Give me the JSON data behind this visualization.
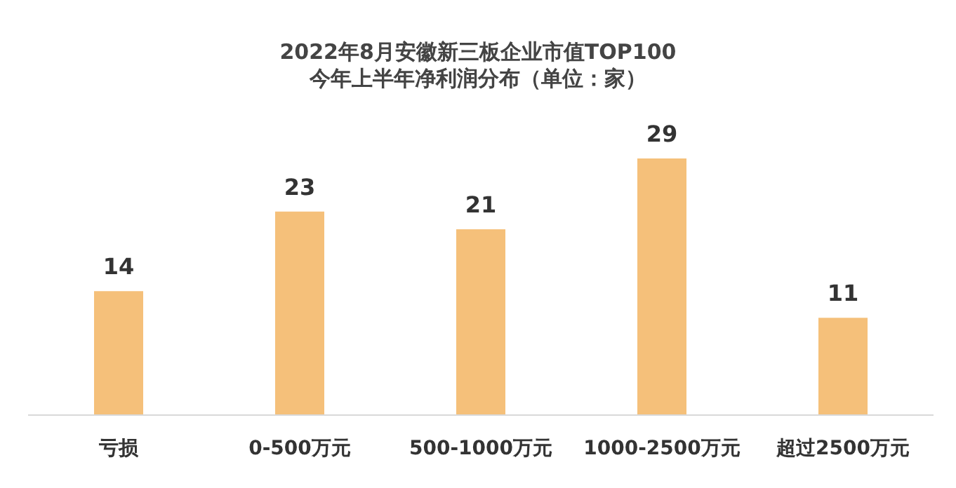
{
  "chart_data": {
    "type": "bar",
    "title": "2022年8月安徽新三板企业市值TOP100",
    "subtitle": "今年上半年净利润分布（单位：家）",
    "categories": [
      "亏损",
      "0-500万元",
      "500-1000万元",
      "1000-2500万元",
      "超过2500万元"
    ],
    "values": [
      14,
      23,
      21,
      29,
      11
    ],
    "color": "#f5c07a",
    "data_labels": true
  }
}
